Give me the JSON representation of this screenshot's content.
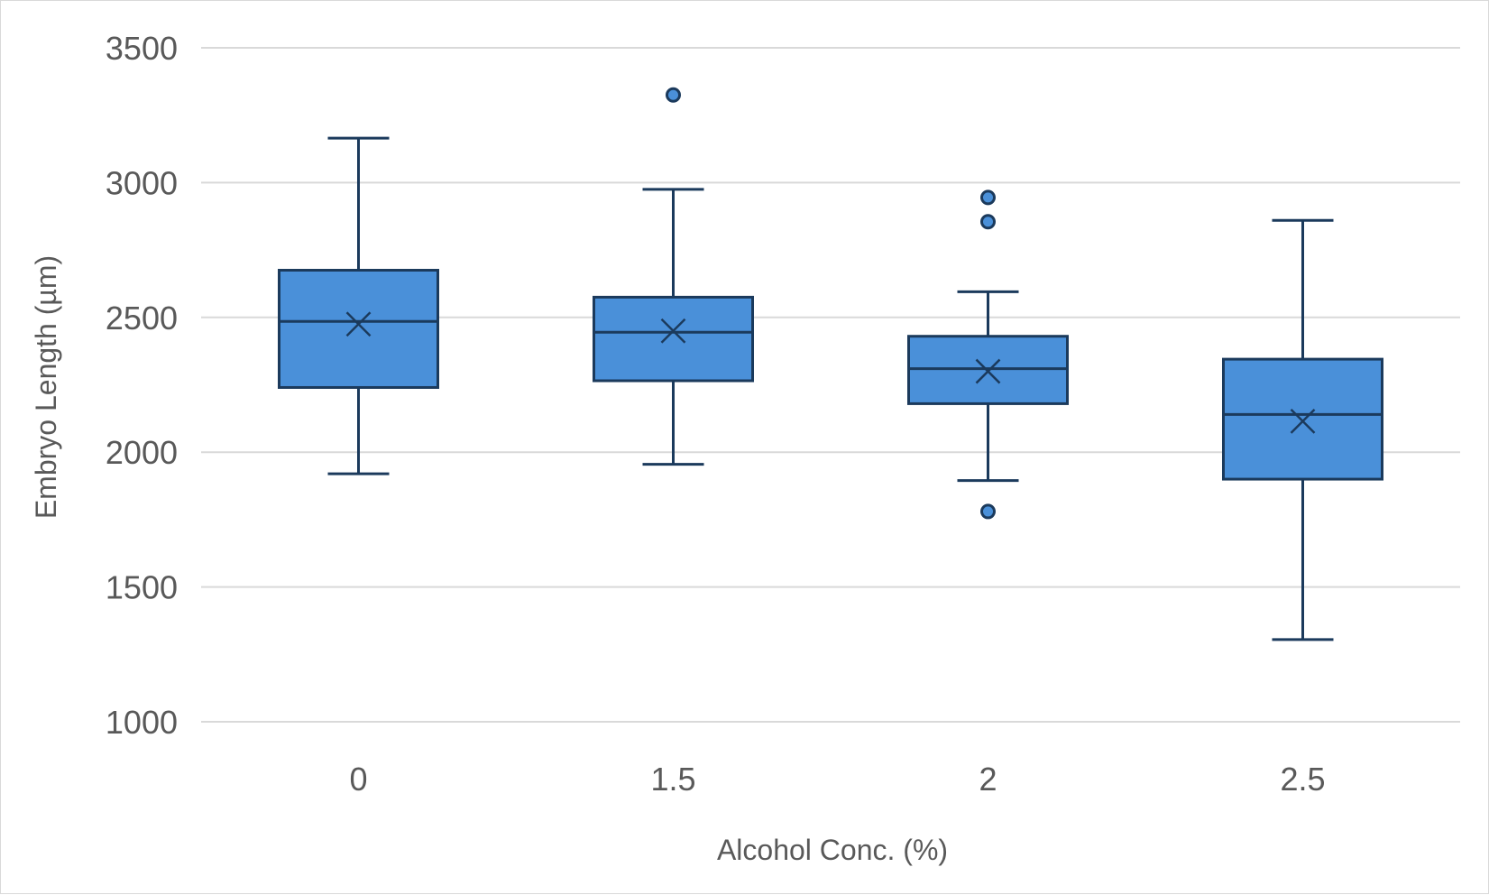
{
  "chart_data": {
    "type": "boxplot",
    "title": "",
    "xlabel": "Alcohol Conc. (%)",
    "ylabel": "Embryo Length (µm)",
    "ylim": [
      1000,
      3500
    ],
    "yticks": [
      1000,
      1500,
      2000,
      2500,
      3000,
      3500
    ],
    "grid": true,
    "legend": "none",
    "categories": [
      "0",
      "1.5",
      "2",
      "2.5"
    ],
    "boxes": [
      {
        "category": "0",
        "whisker_low": 1920,
        "q1": 2240,
        "median": 2485,
        "q3": 2675,
        "whisker_high": 3165,
        "mean": 2475,
        "outliers": []
      },
      {
        "category": "1.5",
        "whisker_low": 1955,
        "q1": 2265,
        "median": 2445,
        "q3": 2575,
        "whisker_high": 2975,
        "mean": 2450,
        "outliers": [
          3325
        ]
      },
      {
        "category": "2",
        "whisker_low": 1895,
        "q1": 2180,
        "median": 2310,
        "q3": 2430,
        "whisker_high": 2595,
        "mean": 2300,
        "outliers": [
          2945,
          2855,
          1780
        ]
      },
      {
        "category": "2.5",
        "whisker_low": 1305,
        "q1": 1900,
        "median": 2140,
        "q3": 2345,
        "whisker_high": 2860,
        "mean": 2115,
        "outliers": []
      }
    ],
    "colors": {
      "box_fill": "#4a90d9",
      "box_stroke": "#1b3a5c",
      "gridline": "#d9d9d9",
      "text": "#595959"
    }
  }
}
